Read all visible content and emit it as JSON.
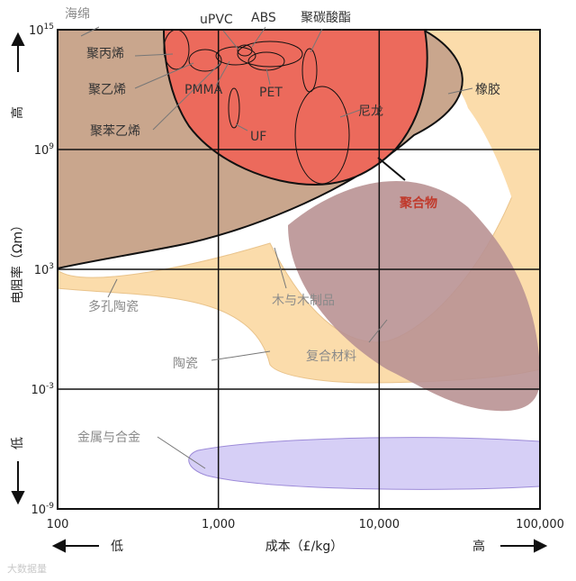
{
  "chart_data": {
    "type": "area",
    "xscale": "log",
    "yscale": "log",
    "xlim": [
      100,
      100000
    ],
    "ylim": [
      "1e-9",
      "1e15"
    ],
    "grid": true,
    "x_ticks": [
      "100",
      "1,000",
      "10,000",
      "100,000"
    ],
    "y_ticks": [
      {
        "base": "10",
        "exp": "15"
      },
      {
        "base": "10",
        "exp": "9"
      },
      {
        "base": "10",
        "exp": "3"
      },
      {
        "base": "10",
        "exp": "-3"
      },
      {
        "base": "10",
        "exp": "-9"
      }
    ],
    "xlabel": "成本（£/kg）",
    "x_low": "低",
    "x_high": "高",
    "ylabel": "电阻率（Ωm）",
    "y_low": "低",
    "y_high": "高",
    "regions": [
      {
        "name": "海绵",
        "color": "#c8a48c"
      },
      {
        "name": "聚丙烯"
      },
      {
        "name": "聚乙烯"
      },
      {
        "name": "聚苯乙烯"
      },
      {
        "name": "PMMA"
      },
      {
        "name": "uPVC"
      },
      {
        "name": "ABS"
      },
      {
        "name": "聚碳酸酯"
      },
      {
        "name": "PET"
      },
      {
        "name": "UF"
      },
      {
        "name": "尼龙"
      },
      {
        "name": "橡胶",
        "color": "#d8b89a"
      },
      {
        "name": "聚合物",
        "color": "#e8655a"
      },
      {
        "name": "多孔陶瓷"
      },
      {
        "name": "木与木制品"
      },
      {
        "name": "陶瓷",
        "color": "#fbdcab"
      },
      {
        "name": "复合材料",
        "color": "#b3898a"
      },
      {
        "name": "金属与合金",
        "color": "#cfc8f2"
      }
    ]
  },
  "watermark": "大数据量"
}
